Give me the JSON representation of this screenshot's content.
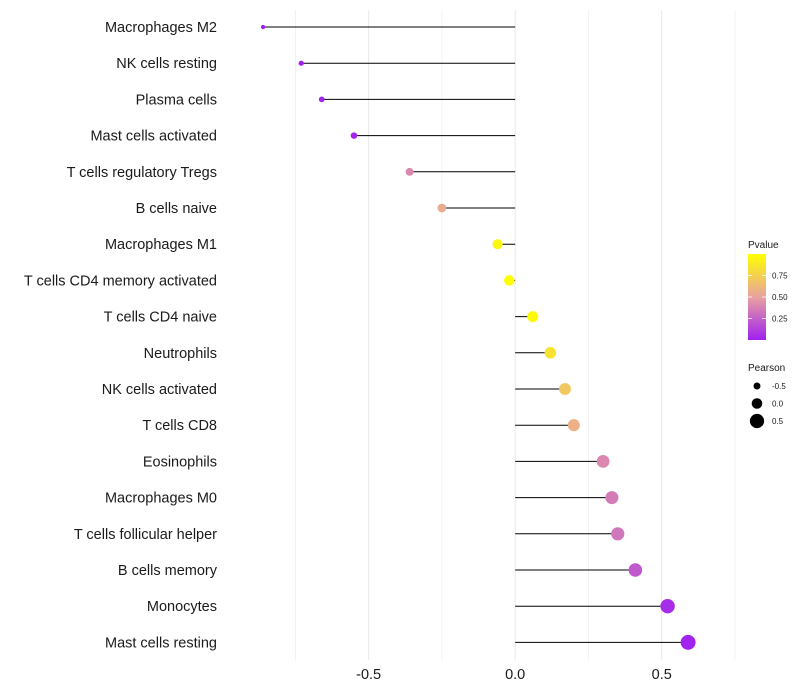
{
  "chart_data": {
    "type": "lollipop",
    "title": "",
    "xlabel": "",
    "ylabel": "",
    "xlim": [
      -0.99,
      0.75
    ],
    "x_ticks": [
      -0.5,
      0.0,
      0.5
    ],
    "x_tick_labels": [
      "-0.5",
      "0.0",
      "0.5"
    ],
    "grid": "vertical",
    "categories": [
      "Macrophages M2",
      "NK cells resting",
      "Plasma cells",
      "Mast cells activated",
      "T cells regulatory  Tregs",
      "B cells naive",
      "Macrophages M1",
      "T cells CD4 memory activated",
      "T cells CD4 naive",
      "Neutrophils",
      "NK cells activated",
      "T cells CD8",
      "Eosinophils",
      "Macrophages M0",
      "T cells follicular helper",
      "B cells memory",
      "Monocytes",
      "Mast cells resting"
    ],
    "pearson": [
      -0.86,
      -0.73,
      -0.66,
      -0.55,
      -0.36,
      -0.25,
      -0.06,
      -0.02,
      0.06,
      0.12,
      0.17,
      0.2,
      0.3,
      0.33,
      0.35,
      0.41,
      0.52,
      0.59
    ],
    "pvalue": [
      0.0,
      0.0,
      0.01,
      0.02,
      0.4,
      0.55,
      0.95,
      1.0,
      0.97,
      0.85,
      0.7,
      0.58,
      0.4,
      0.35,
      0.33,
      0.22,
      0.05,
      0.01
    ],
    "color_legend": {
      "title": "Pvalue",
      "ticks": [
        0.25,
        0.5,
        0.75
      ],
      "tick_labels": [
        "0.25",
        "0.50",
        "0.75"
      ],
      "low_color": "#a020f0",
      "mid_color": "#e8a29f",
      "high_color": "#ffff00"
    },
    "size_legend": {
      "title": "Pearson",
      "values": [
        -0.5,
        0.0,
        0.5
      ],
      "labels": [
        "-0.5",
        "0.0",
        "0.5"
      ]
    },
    "segment_color": "#000000",
    "grid_color": "#ebebeb"
  }
}
